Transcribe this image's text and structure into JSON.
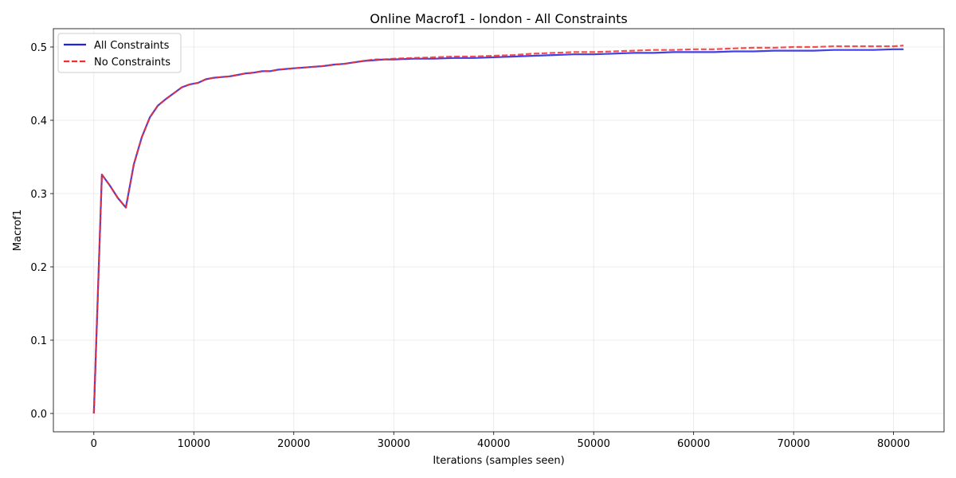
{
  "chart_data": {
    "type": "line",
    "title": "Online Macrof1 - london - All Constraints",
    "xlabel": "Iterations (samples seen)",
    "ylabel": "Macrof1",
    "xlim": [
      -4050,
      85050
    ],
    "ylim": [
      -0.025,
      0.525
    ],
    "x_ticks": [
      0,
      10000,
      20000,
      30000,
      40000,
      50000,
      60000,
      70000,
      80000
    ],
    "y_ticks": [
      0.0,
      0.1,
      0.2,
      0.3,
      0.4,
      0.5
    ],
    "y_tick_labels": [
      "0.0",
      "0.1",
      "0.2",
      "0.3",
      "0.4",
      "0.5"
    ],
    "grid": true,
    "legend_position": "top-left",
    "series": [
      {
        "name": "All Constraints",
        "color": "#2020e0",
        "style": "solid",
        "x": [
          0,
          800,
          1600,
          2400,
          3200,
          4000,
          4800,
          5600,
          6400,
          7200,
          8000,
          8800,
          9600,
          10400,
          11200,
          12000,
          12800,
          13600,
          14400,
          15200,
          16000,
          16800,
          17600,
          18400,
          19200,
          20000,
          21000,
          22000,
          23000,
          24000,
          25000,
          26000,
          27000,
          28000,
          29000,
          30000,
          32000,
          34000,
          36000,
          38000,
          40000,
          42000,
          44000,
          46000,
          48000,
          50000,
          52000,
          54000,
          56000,
          58000,
          60000,
          62000,
          64000,
          66000,
          68000,
          70000,
          72000,
          74000,
          76000,
          78000,
          80000,
          81000
        ],
        "y": [
          0.0,
          0.326,
          0.311,
          0.294,
          0.281,
          0.34,
          0.377,
          0.404,
          0.42,
          0.429,
          0.437,
          0.445,
          0.449,
          0.451,
          0.456,
          0.458,
          0.459,
          0.46,
          0.462,
          0.464,
          0.465,
          0.467,
          0.467,
          0.469,
          0.47,
          0.471,
          0.472,
          0.473,
          0.474,
          0.476,
          0.477,
          0.479,
          0.481,
          0.482,
          0.483,
          0.483,
          0.484,
          0.484,
          0.485,
          0.485,
          0.486,
          0.487,
          0.488,
          0.489,
          0.49,
          0.49,
          0.491,
          0.492,
          0.492,
          0.493,
          0.493,
          0.493,
          0.494,
          0.494,
          0.495,
          0.495,
          0.495,
          0.496,
          0.496,
          0.496,
          0.497,
          0.497
        ]
      },
      {
        "name": "No Constraints",
        "color": "#f03030",
        "style": "dashed",
        "x": [
          0,
          800,
          1600,
          2400,
          3200,
          4000,
          4800,
          5600,
          6400,
          7200,
          8000,
          8800,
          9600,
          10400,
          11200,
          12000,
          12800,
          13600,
          14400,
          15200,
          16000,
          16800,
          17600,
          18400,
          19200,
          20000,
          21000,
          22000,
          23000,
          24000,
          25000,
          26000,
          27000,
          28000,
          29000,
          30000,
          32000,
          34000,
          36000,
          38000,
          40000,
          42000,
          44000,
          46000,
          48000,
          50000,
          52000,
          54000,
          56000,
          58000,
          60000,
          62000,
          64000,
          66000,
          68000,
          70000,
          72000,
          74000,
          76000,
          78000,
          80000,
          81000
        ],
        "y": [
          0.0,
          0.326,
          0.311,
          0.294,
          0.281,
          0.34,
          0.377,
          0.404,
          0.42,
          0.429,
          0.437,
          0.445,
          0.449,
          0.451,
          0.456,
          0.458,
          0.459,
          0.46,
          0.462,
          0.464,
          0.465,
          0.467,
          0.467,
          0.469,
          0.47,
          0.471,
          0.472,
          0.473,
          0.474,
          0.476,
          0.477,
          0.479,
          0.481,
          0.483,
          0.483,
          0.484,
          0.485,
          0.486,
          0.487,
          0.487,
          0.488,
          0.489,
          0.491,
          0.492,
          0.493,
          0.493,
          0.494,
          0.495,
          0.496,
          0.496,
          0.497,
          0.497,
          0.498,
          0.499,
          0.499,
          0.5,
          0.5,
          0.501,
          0.501,
          0.501,
          0.501,
          0.502
        ]
      }
    ]
  }
}
